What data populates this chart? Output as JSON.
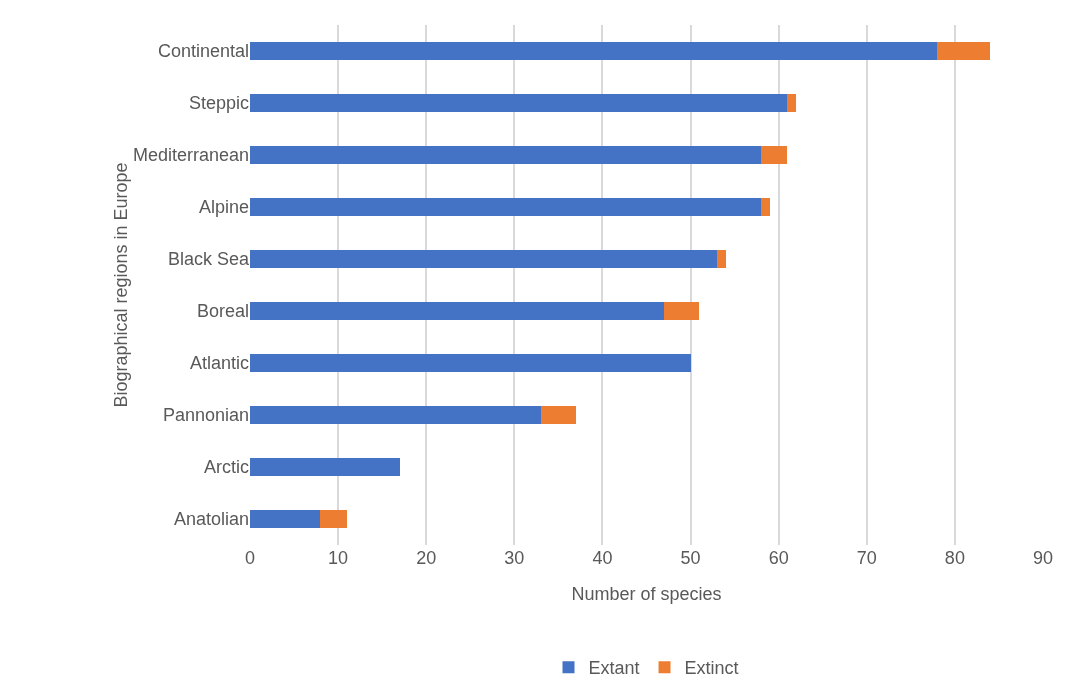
{
  "chart_data": {
    "type": "bar",
    "orientation": "horizontal",
    "stacked": true,
    "xlabel": "Number of species",
    "ylabel": "Biographical regions in Europe",
    "categories": [
      "Continental",
      "Steppic",
      "Mediterranean",
      "Alpine",
      "Black Sea",
      "Boreal",
      "Atlantic",
      "Pannonian",
      "Arctic",
      "Anatolian"
    ],
    "series": [
      {
        "name": "Extant",
        "color": "#4472c4",
        "values": [
          78,
          61,
          58,
          58,
          53,
          47,
          50,
          33,
          17,
          8
        ]
      },
      {
        "name": "Extinct",
        "color": "#ed7d31",
        "values": [
          6,
          1,
          3,
          1,
          1,
          4,
          0,
          4,
          0,
          3
        ]
      }
    ],
    "xlim": [
      0,
      90
    ],
    "xticks": [
      0,
      10,
      20,
      30,
      40,
      50,
      60,
      70,
      80,
      90
    ],
    "grid": "x",
    "legend": "bottom"
  }
}
